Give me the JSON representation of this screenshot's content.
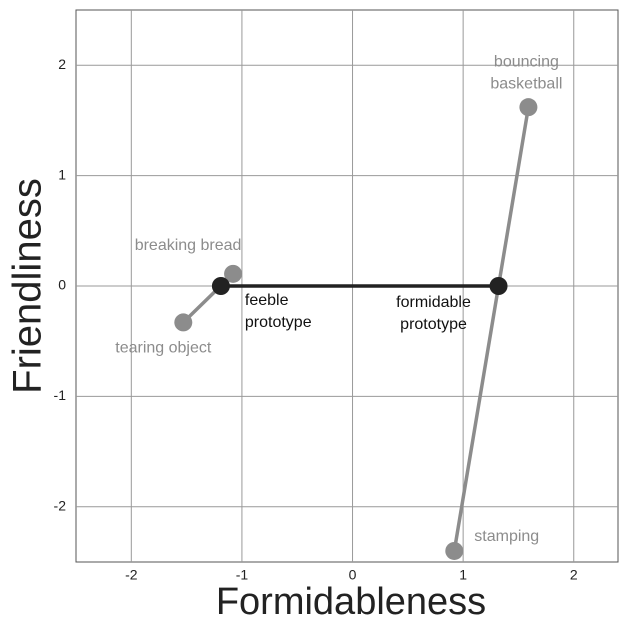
{
  "chart_data": {
    "type": "scatter",
    "xlabel": "Formidableness",
    "ylabel": "Friendliness",
    "xlim": [
      -2.5,
      2.4
    ],
    "ylim": [
      -2.5,
      2.5
    ],
    "xticks": [
      -2,
      -1,
      0,
      1,
      2
    ],
    "yticks": [
      -2,
      -1,
      0,
      1,
      2
    ],
    "grid": true,
    "series": [
      {
        "color": "#8c8c8c",
        "label_color": "#8c8c8c",
        "x": [
          -1.53,
          -1.08
        ],
        "y": [
          -0.33,
          0.11
        ],
        "labels": [
          [
            "tearing object"
          ],
          [
            "breaking bread"
          ]
        ]
      },
      {
        "color": "#8c8c8c",
        "label_color": "#8c8c8c",
        "x": [
          0.92,
          1.59
        ],
        "y": [
          -2.4,
          1.62
        ],
        "labels": [
          [
            "stamping"
          ],
          [
            "bouncing",
            "basketball"
          ]
        ]
      },
      {
        "color": "#222222",
        "label_color": "#111111",
        "x": [
          -1.19,
          1.32
        ],
        "y": [
          0,
          0
        ],
        "labels": [
          [
            "feeble",
            "prototype"
          ],
          [
            "formidable",
            "prototype"
          ]
        ]
      }
    ]
  }
}
